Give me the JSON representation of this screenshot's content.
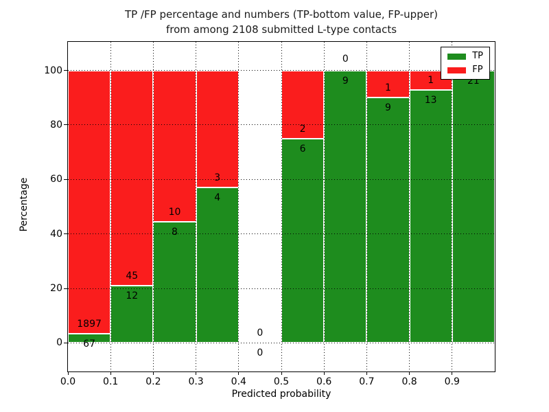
{
  "chart_data": {
    "type": "bar",
    "stacked": true,
    "normalized_to_percent": true,
    "title": "TP /FP percentage and numbers (TP-bottom value, FP-upper) from among 2108 submitted L-type contacts",
    "title_lines": [
      "TP /FP percentage and numbers (TP-bottom value, FP-upper)",
      "from among 2108 submitted L-type contacts"
    ],
    "total_submitted_contacts": 2108,
    "xlabel": "Predicted probability",
    "ylabel": "Percentage",
    "xlim": [
      0.0,
      1.0
    ],
    "ylim": [
      -10.5,
      110.5
    ],
    "xticks": [
      "0.0",
      "0.1",
      "0.2",
      "0.3",
      "0.4",
      "0.5",
      "0.6",
      "0.7",
      "0.8",
      "0.9"
    ],
    "yticks": [
      "0",
      "20",
      "40",
      "60",
      "80",
      "100"
    ],
    "grid": true,
    "grid_style": "dotted",
    "legend_position": "upper right",
    "bin_edges": [
      0.0,
      0.1,
      0.2,
      0.3,
      0.4,
      0.5,
      0.6,
      0.7,
      0.8,
      0.9,
      1.0
    ],
    "series": [
      {
        "name": "TP",
        "color": "#1e8c1e",
        "values": [
          67,
          12,
          8,
          4,
          0,
          6,
          9,
          9,
          13,
          21
        ]
      },
      {
        "name": "FP",
        "color": "#fa1d1d",
        "values": [
          1897,
          45,
          10,
          3,
          0,
          2,
          0,
          1,
          1,
          0
        ]
      }
    ],
    "tp_percent_per_bin": [
      3.41,
      21.05,
      44.44,
      57.14,
      null,
      75.0,
      100.0,
      90.0,
      92.86,
      100.0
    ],
    "bar_edge_color": "#ffffff",
    "axes_color": "#000000",
    "background_color": "#ffffff"
  }
}
